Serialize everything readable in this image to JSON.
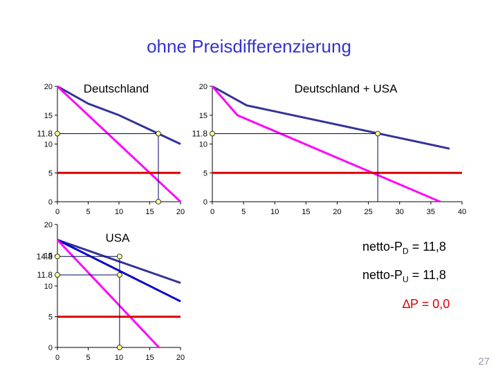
{
  "slide": {
    "title": "ohne Preisdifferenzierung",
    "page_number": "27",
    "notes": [
      {
        "id": "netto-d",
        "prefix": "netto-P",
        "sub": "D",
        "value": " = 11,8"
      },
      {
        "id": "netto-u",
        "prefix": "netto-P",
        "sub": "U",
        "value": " = 11,8"
      },
      {
        "id": "delta",
        "prefix": "∆P",
        "sub": "",
        "value": " = 0,0"
      }
    ]
  },
  "colors": {
    "demand": "#333399",
    "marginal_revenue": "#ff00ff",
    "cost": "#dd0000",
    "demand_usa_2": "#0000cc",
    "marker_fill": "#ffff99",
    "guide": "#000066"
  },
  "chart_data": [
    {
      "id": "deutschland",
      "type": "line",
      "title": "Deutschland",
      "xlim": [
        0,
        20
      ],
      "ylim": [
        0,
        20
      ],
      "xticks": [
        0,
        5,
        10,
        15,
        20
      ],
      "yticks": [
        0,
        5,
        10,
        15,
        20
      ],
      "xtick_labels": [
        "0",
        "5",
        "10",
        "15",
        "20"
      ],
      "ytick_labels": [
        "0",
        "5",
        "10",
        "15",
        "20"
      ],
      "grid": false,
      "series": [
        {
          "role": "demand",
          "color": "#333399",
          "x": [
            0,
            5,
            10,
            20
          ],
          "y": [
            20,
            17,
            15,
            10
          ]
        },
        {
          "role": "marginal_revenue",
          "color": "#ff00ff",
          "x": [
            0,
            20
          ],
          "y": [
            20,
            0
          ]
        },
        {
          "role": "cost",
          "color": "#dd0000",
          "x": [
            0,
            20
          ],
          "y": [
            5,
            5
          ]
        }
      ],
      "markers": [
        {
          "x": 16.4,
          "y": 11.8,
          "guide_to": "both",
          "label": "11.8"
        },
        {
          "x": 16.4,
          "y": 0
        }
      ]
    },
    {
      "id": "deutschland-usa",
      "type": "line",
      "title": "Deutschland + USA",
      "xlim": [
        0,
        40
      ],
      "ylim": [
        0,
        20
      ],
      "xticks": [
        0,
        5,
        10,
        15,
        20,
        25,
        30,
        35,
        40
      ],
      "yticks": [
        0,
        5,
        10,
        15,
        20
      ],
      "xtick_labels": [
        "0",
        "5",
        "10",
        "15",
        "20",
        "25",
        "30",
        "35",
        "40"
      ],
      "ytick_labels": [
        "0",
        "5",
        "10",
        "15",
        "20"
      ],
      "grid": false,
      "series": [
        {
          "role": "demand",
          "color": "#333399",
          "x": [
            0,
            5.5,
            38
          ],
          "y": [
            20,
            16.7,
            9.2
          ]
        },
        {
          "role": "marginal_revenue",
          "color": "#ff00ff",
          "x": [
            0,
            4,
            36.5
          ],
          "y": [
            20,
            15,
            0
          ]
        },
        {
          "role": "cost",
          "color": "#dd0000",
          "x": [
            0,
            40
          ],
          "y": [
            5,
            5
          ]
        }
      ],
      "markers": [
        {
          "x": 26.5,
          "y": 11.8,
          "guide_to": "both",
          "label": "11.8"
        }
      ]
    },
    {
      "id": "usa",
      "type": "line",
      "title": "USA",
      "xlim": [
        0,
        20
      ],
      "ylim": [
        0,
        20
      ],
      "xticks": [
        0,
        5,
        10,
        15,
        20
      ],
      "yticks": [
        0,
        5,
        10,
        15,
        20
      ],
      "xtick_labels": [
        "0",
        "5",
        "10",
        "15",
        "20"
      ],
      "ytick_labels": [
        "0",
        "5",
        "10",
        "15",
        "20"
      ],
      "grid": false,
      "series": [
        {
          "role": "demand",
          "color": "#333399",
          "x": [
            0,
            20
          ],
          "y": [
            17.5,
            10.5
          ]
        },
        {
          "role": "demand",
          "color": "#0000cc",
          "x": [
            0,
            20
          ],
          "y": [
            17.5,
            7.5
          ]
        },
        {
          "role": "marginal_revenue",
          "color": "#ff00ff",
          "x": [
            0,
            16.5
          ],
          "y": [
            17.5,
            0
          ]
        },
        {
          "role": "cost",
          "color": "#dd0000",
          "x": [
            0,
            20
          ],
          "y": [
            5,
            5
          ]
        }
      ],
      "markers": [
        {
          "x": 10.1,
          "y": 14.8,
          "guide_to": "both",
          "label": "14.8"
        },
        {
          "x": 10.1,
          "y": 11.8,
          "guide_to": "y",
          "label": "11.8"
        },
        {
          "x": 10.1,
          "y": 0
        }
      ]
    }
  ]
}
